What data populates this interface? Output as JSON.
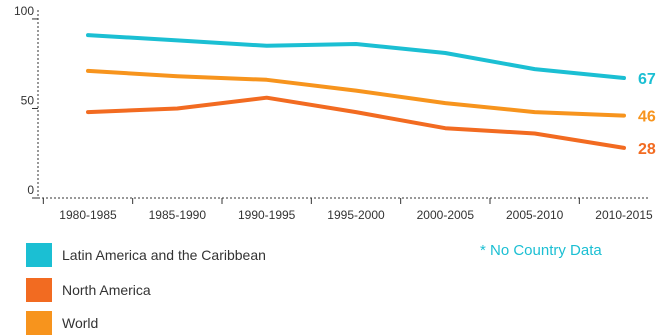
{
  "chart_data": {
    "type": "line",
    "categories": [
      "1980-1985",
      "1985-1990",
      "1990-1995",
      "1995-2000",
      "2000-2005",
      "2005-2010",
      "2010-2015"
    ],
    "yticks": [
      "0",
      "50",
      "100"
    ],
    "ylim": [
      0,
      105
    ],
    "grid": false,
    "legend_position": "bottom-left",
    "series": [
      {
        "name": "Latin America and the Caribbean",
        "color": "#1bbfd3",
        "values": [
          91,
          88,
          85,
          86,
          81,
          72,
          67
        ],
        "end_label": "67"
      },
      {
        "name": "North America",
        "color": "#f26b21",
        "values": [
          48,
          50,
          56,
          48,
          39,
          36,
          28
        ],
        "end_label": "28"
      },
      {
        "name": "World",
        "color": "#f7941d",
        "values": [
          71,
          68,
          66,
          60,
          53,
          48,
          46
        ],
        "end_label": "46"
      }
    ]
  },
  "legend": [
    {
      "label": "Latin America and the Caribbean",
      "color": "#1bbfd3"
    },
    {
      "label": "North America",
      "color": "#f26b21"
    },
    {
      "label": "World",
      "color": "#f7941d"
    }
  ],
  "note": {
    "text": "* No Country Data",
    "color": "#1bbfd3"
  }
}
